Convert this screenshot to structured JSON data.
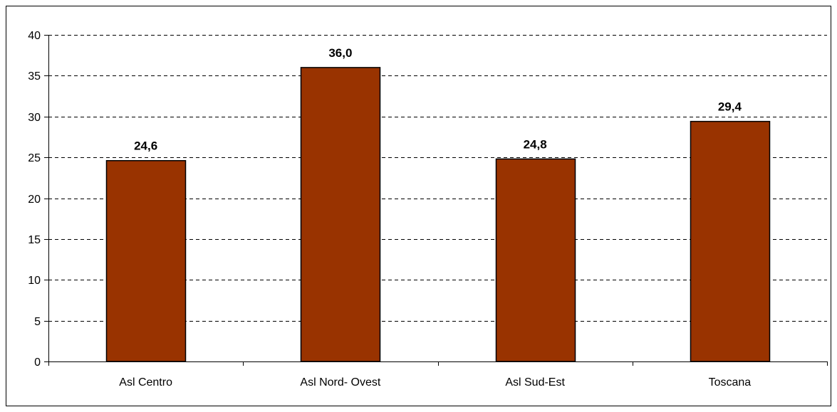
{
  "chart_data": {
    "type": "bar",
    "title": "",
    "xlabel": "",
    "ylabel": "",
    "categories": [
      "Asl Centro",
      "Asl Nord- Ovest",
      "Asl Sud-Est",
      "Toscana"
    ],
    "values": [
      24.6,
      36.0,
      24.8,
      29.4
    ],
    "data_labels": [
      "24,6",
      "36,0",
      "24,8",
      "29,4"
    ],
    "ylim": [
      0,
      40
    ],
    "yticks": [
      0,
      5,
      10,
      15,
      20,
      25,
      30,
      35,
      40
    ],
    "grid": "horizontal-dashed",
    "legend": "none",
    "colors": {
      "bar_fill": "#993300",
      "bar_stroke": "#000000",
      "grid": "#000000",
      "axis": "#000000"
    }
  }
}
